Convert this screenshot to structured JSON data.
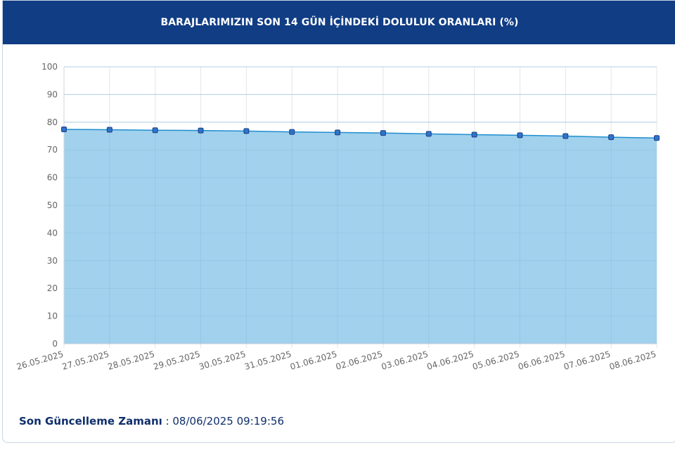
{
  "header": {
    "title": "BARAJLARIMIZIN SON 14 GÜN İÇİNDEKİ DOLULUK ORANLARI (%)"
  },
  "chart_data": {
    "type": "area",
    "title": "",
    "xlabel": "",
    "ylabel": "",
    "ylim": [
      0,
      100
    ],
    "yticks": [
      0,
      10,
      20,
      30,
      40,
      50,
      60,
      70,
      80,
      90,
      100
    ],
    "grid": true,
    "legend": "none",
    "categories": [
      "26.05.2025",
      "27.05.2025",
      "28.05.2025",
      "29.05.2025",
      "30.05.2025",
      "31.05.2025",
      "01.06.2025",
      "02.06.2025",
      "03.06.2025",
      "04.06.2025",
      "05.06.2025",
      "06.06.2025",
      "07.06.2025",
      "08.06.2025"
    ],
    "series": [
      {
        "values": [
          77.4,
          77.3,
          77.1,
          77.0,
          76.8,
          76.5,
          76.3,
          76.1,
          75.8,
          75.5,
          75.3,
          75.0,
          74.6,
          74.3
        ],
        "line_color": "#1f8dcf",
        "fill_color": "#9ccfec"
      }
    ]
  },
  "footer": {
    "label": "Son Güncelleme Zamanı",
    "separator": " : ",
    "value": "08/06/2025 09:19:56"
  }
}
